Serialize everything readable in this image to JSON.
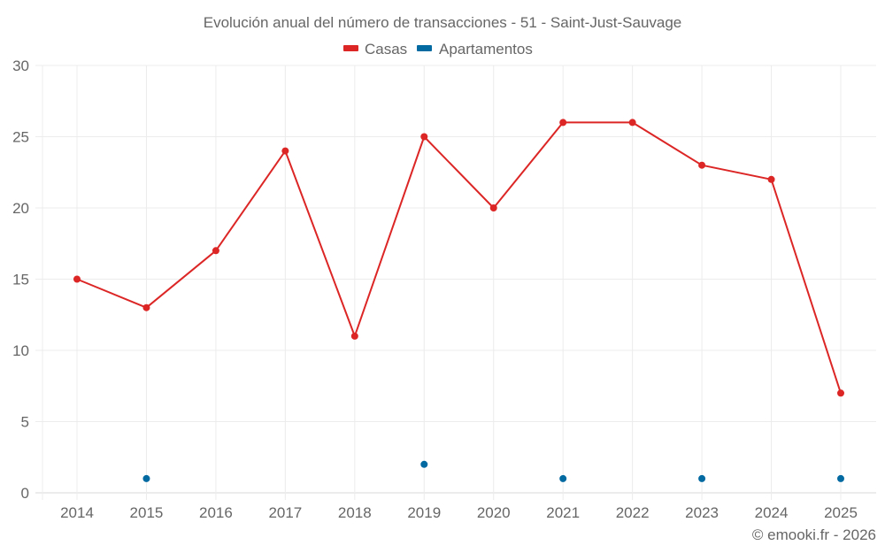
{
  "chart_data": {
    "type": "line",
    "title": "Evolución anual del número de transacciones - 51 - Saint-Just-Sauvage",
    "xlabel": "",
    "ylabel": "",
    "categories": [
      "2014",
      "2015",
      "2016",
      "2017",
      "2018",
      "2019",
      "2020",
      "2021",
      "2022",
      "2023",
      "2024",
      "2025"
    ],
    "ylim": [
      0,
      30
    ],
    "yticks": [
      "0",
      "5",
      "10",
      "15",
      "20",
      "25",
      "30"
    ],
    "grid": true,
    "legend_position": "top-center",
    "series": [
      {
        "name": "Casas",
        "color": "#dc2626",
        "style": "line-with-markers",
        "values": [
          15,
          13,
          17,
          24,
          11,
          25,
          20,
          26,
          26,
          23,
          22,
          7
        ]
      },
      {
        "name": "Apartamentos",
        "color": "#0369a1",
        "style": "markers-only",
        "values": [
          null,
          1,
          null,
          null,
          null,
          2,
          null,
          1,
          null,
          1,
          null,
          1
        ]
      }
    ],
    "credit": "© emooki.fr - 2026"
  }
}
